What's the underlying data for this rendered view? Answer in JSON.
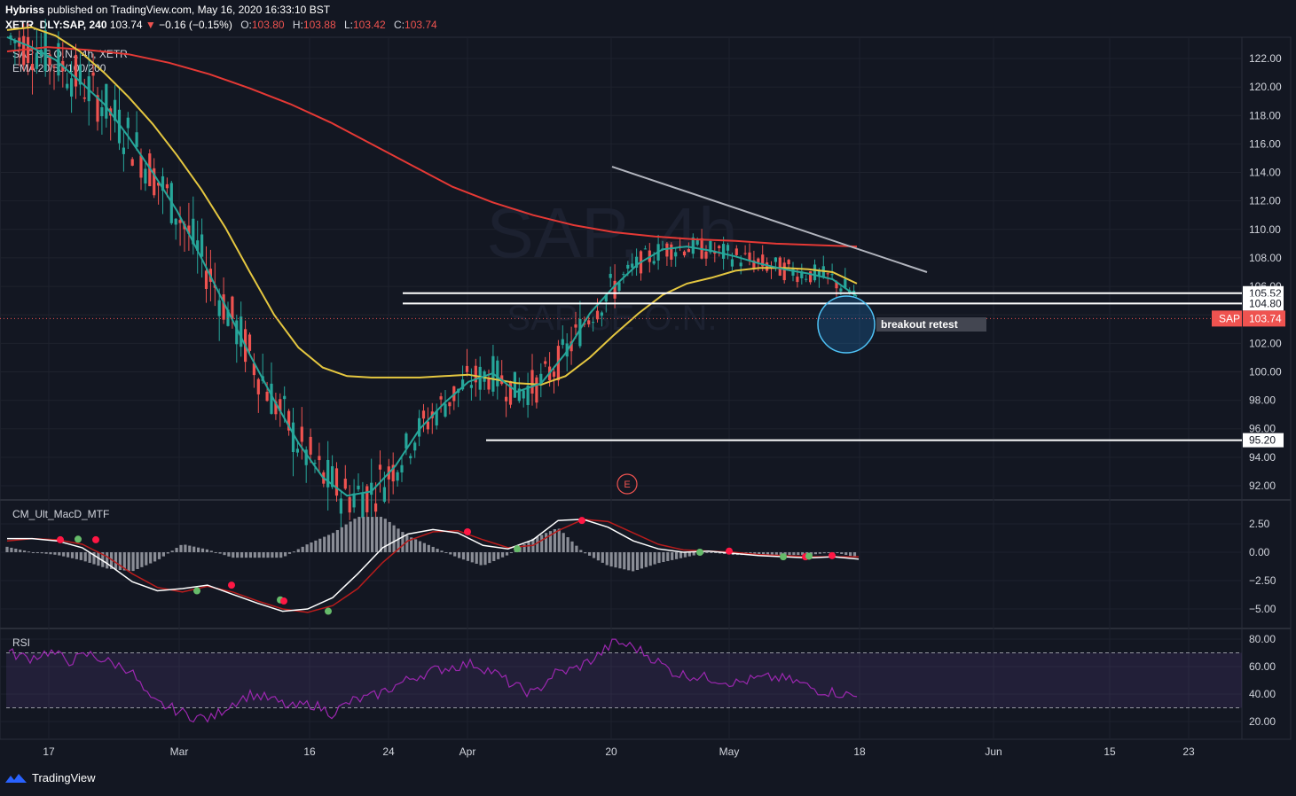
{
  "header": {
    "author": "Hybriss",
    "published": "published on TradingView.com, May 16, 2020 16:33:10 BST",
    "symbol": "XETR_DLY:SAP, 240",
    "last": "103.74",
    "arrow": "▼",
    "change": "−0.16 (−0.15%)",
    "o_label": "O:",
    "o": "103.80",
    "h_label": "H:",
    "h": "103.88",
    "l_label": "L:",
    "l": "103.42",
    "c_label": "C:",
    "c": "103.74"
  },
  "legend": {
    "name": "SAP SE O.N., 4h, XETR",
    "ema": "EMA 20/50/100/200"
  },
  "watermark": {
    "big": "SAP, 4h",
    "small": "SAP SE O.N."
  },
  "colors": {
    "bg": "#131722",
    "grid": "#1e222d",
    "up": "#26a69a",
    "down": "#ef5350",
    "ema20": "#26a69a",
    "ema50": "#e5c740",
    "ema200": "#e53935",
    "rsi": "#9c27b0"
  },
  "annotation": {
    "text": "breakout retest",
    "earnings": "E"
  },
  "macd_title": "CM_Ult_MacD_MTF",
  "rsi_title": "RSI",
  "footer": {
    "brand": "TradingView"
  },
  "chart_data": [
    {
      "type": "candlestick",
      "title": "SAP SE O.N., 4h, XETR",
      "x_ticks": [
        "17",
        "Mar",
        "16",
        "24",
        "Apr",
        "20",
        "May",
        "18",
        "Jun",
        "15",
        "23"
      ],
      "y_ticks": [
        "92.00",
        "94.00",
        "96.00",
        "98.00",
        "100.00",
        "102.00",
        "104.00",
        "106.00",
        "108.00",
        "110.00",
        "112.00",
        "114.00",
        "116.00",
        "118.00",
        "120.00",
        "122.00"
      ],
      "ylim": [
        91,
        123
      ],
      "horizontal_levels": [
        {
          "value": 105.52,
          "label": "105.52"
        },
        {
          "value": 104.8,
          "label": "104.80"
        },
        {
          "value": 95.2,
          "label": "95.20"
        }
      ],
      "current_price": {
        "label": "SAP",
        "value": 103.74
      },
      "trendline": {
        "from": 114.4,
        "to": 107.0
      },
      "series": [
        {
          "name": "EMA 20",
          "values": [
            123.5,
            122.8,
            121.9,
            120.4,
            118.8,
            116.5,
            114.0,
            111.3,
            108.0,
            104.6,
            101.2,
            98.0,
            95.0,
            92.6,
            91.3,
            91.6,
            93.4,
            96.0,
            97.8,
            99.3,
            99.9,
            98.6,
            99.2,
            101.3,
            104.1,
            106.0,
            107.6,
            108.6,
            108.8,
            108.5,
            108.1,
            107.6,
            107.2,
            106.9,
            106.5,
            105.3
          ]
        },
        {
          "name": "EMA 50",
          "values": [
            124.0,
            124.2,
            123.6,
            122.5,
            121.0,
            119.3,
            117.4,
            115.2,
            112.8,
            110.1,
            107.0,
            104.0,
            101.7,
            100.3,
            99.7,
            99.6,
            99.6,
            99.6,
            99.7,
            99.8,
            99.5,
            99.2,
            99.1,
            99.7,
            101.0,
            102.6,
            104.1,
            105.4,
            106.2,
            106.6,
            107.1,
            107.3,
            107.3,
            107.2,
            107.0,
            106.2
          ]
        },
        {
          "name": "EMA 200",
          "values": [
            122.5,
            122.8,
            122.6,
            122.3,
            121.7,
            120.9,
            119.9,
            118.8,
            117.5,
            116.0,
            114.5,
            113.0,
            111.9,
            111.0,
            110.3,
            109.8,
            109.5,
            109.3,
            109.2,
            109.0,
            108.9,
            108.8
          ]
        }
      ]
    },
    {
      "type": "line",
      "title": "CM_Ult_MacD_MTF",
      "y_ticks": [
        "2.50",
        "0.00",
        "−2.50",
        "−5.00"
      ],
      "ylim": [
        -6.2,
        3.8
      ]
    },
    {
      "type": "line",
      "title": "RSI",
      "y_ticks": [
        "80.00",
        "60.00",
        "40.00",
        "20.00"
      ],
      "ylim": [
        12,
        84
      ],
      "bands": [
        70,
        30
      ]
    }
  ]
}
